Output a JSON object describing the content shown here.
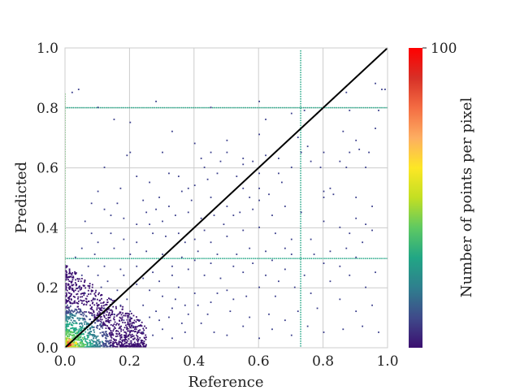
{
  "chart_data": {
    "type": "heatmap",
    "subtype": "density scatter (2D histogram)",
    "xlabel": "Reference",
    "ylabel": "Predicted",
    "xlim": [
      0.0,
      1.0
    ],
    "ylim": [
      0.0,
      1.0
    ],
    "xticks": [
      "0.0",
      "0.2",
      "0.4",
      "0.6",
      "0.8",
      "1.0"
    ],
    "yticks": [
      "0.0",
      "0.2",
      "0.4",
      "0.6",
      "0.8",
      "1.0"
    ],
    "grid": true,
    "reference_line": {
      "from": [
        0.0,
        0.0
      ],
      "to": [
        1.0,
        1.0
      ],
      "color": "#000000"
    },
    "colorbar": {
      "label": "Number of points per pixel",
      "min": 1,
      "max": 100,
      "tick_labels": [
        "100"
      ],
      "colormap": "spectral_r",
      "colors": [
        "#3b0f70",
        "#3f4a8a",
        "#2f7f8e",
        "#21a685",
        "#5ec962",
        "#c2df23",
        "#fde725",
        "#fdae61",
        "#f46d43",
        "#d73027",
        "#ff0000"
      ]
    },
    "density_bands": [
      {
        "type": "horizontal_line",
        "y": 0.8,
        "x_range": [
          0.0,
          1.0
        ],
        "density": 3
      },
      {
        "type": "horizontal_line",
        "y": 0.297,
        "x_range": [
          0.0,
          1.0
        ],
        "density": 3
      },
      {
        "type": "vertical_line",
        "x": 0.73,
        "y_range": [
          0.0,
          1.0
        ],
        "density": 3
      },
      {
        "type": "vertical_line",
        "x": 0.0,
        "y_range": [
          0.0,
          0.85
        ],
        "density": 4
      }
    ],
    "points": [
      [
        0.04,
        0.86
      ],
      [
        0.02,
        0.85
      ],
      [
        0.96,
        0.88
      ],
      [
        0.98,
        0.86
      ],
      [
        0.99,
        0.86
      ],
      [
        0.87,
        0.85
      ],
      [
        0.78,
        0.78
      ],
      [
        0.74,
        0.79
      ],
      [
        0.88,
        0.79
      ],
      [
        0.97,
        0.79
      ],
      [
        0.96,
        0.73
      ],
      [
        0.86,
        0.72
      ],
      [
        0.9,
        0.69
      ],
      [
        0.88,
        0.65
      ],
      [
        0.94,
        0.65
      ],
      [
        0.91,
        0.66
      ],
      [
        0.85,
        0.62
      ],
      [
        0.87,
        0.6
      ],
      [
        0.93,
        0.6
      ],
      [
        0.75,
        0.67
      ],
      [
        0.73,
        0.65
      ],
      [
        0.76,
        0.62
      ],
      [
        0.79,
        0.6
      ],
      [
        0.8,
        0.52
      ],
      [
        0.82,
        0.53
      ],
      [
        0.83,
        0.51
      ],
      [
        0.8,
        0.5
      ],
      [
        0.67,
        0.55
      ],
      [
        0.62,
        0.64
      ],
      [
        0.58,
        0.62
      ],
      [
        0.55,
        0.61
      ],
      [
        0.5,
        0.65
      ],
      [
        0.45,
        0.65
      ],
      [
        0.48,
        0.62
      ],
      [
        0.42,
        0.63
      ],
      [
        0.3,
        0.65
      ],
      [
        0.2,
        0.65
      ],
      [
        0.12,
        0.6
      ],
      [
        0.19,
        0.64
      ],
      [
        0.44,
        0.56
      ],
      [
        0.38,
        0.53
      ],
      [
        0.36,
        0.52
      ],
      [
        0.4,
        0.54
      ],
      [
        0.55,
        0.53
      ],
      [
        0.6,
        0.49
      ],
      [
        0.63,
        0.51
      ],
      [
        0.58,
        0.46
      ],
      [
        0.52,
        0.44
      ],
      [
        0.5,
        0.47
      ],
      [
        0.46,
        0.44
      ],
      [
        0.42,
        0.43
      ],
      [
        0.38,
        0.45
      ],
      [
        0.32,
        0.47
      ],
      [
        0.28,
        0.46
      ],
      [
        0.25,
        0.45
      ],
      [
        0.3,
        0.42
      ],
      [
        0.26,
        0.41
      ],
      [
        0.22,
        0.41
      ],
      [
        0.18,
        0.43
      ],
      [
        0.14,
        0.44
      ],
      [
        0.12,
        0.46
      ],
      [
        0.16,
        0.48
      ],
      [
        0.24,
        0.49
      ],
      [
        0.27,
        0.38
      ],
      [
        0.31,
        0.37
      ],
      [
        0.35,
        0.38
      ],
      [
        0.4,
        0.36
      ],
      [
        0.45,
        0.35
      ],
      [
        0.5,
        0.37
      ],
      [
        0.55,
        0.39
      ],
      [
        0.6,
        0.4
      ],
      [
        0.65,
        0.38
      ],
      [
        0.7,
        0.36
      ],
      [
        0.9,
        0.43
      ],
      [
        0.93,
        0.41
      ],
      [
        0.85,
        0.4
      ],
      [
        0.88,
        0.38
      ],
      [
        0.95,
        0.39
      ],
      [
        0.92,
        0.35
      ],
      [
        0.87,
        0.33
      ],
      [
        0.82,
        0.32
      ],
      [
        0.77,
        0.31
      ],
      [
        0.68,
        0.33
      ],
      [
        0.62,
        0.32
      ],
      [
        0.57,
        0.33
      ],
      [
        0.53,
        0.31
      ],
      [
        0.47,
        0.31
      ],
      [
        0.41,
        0.32
      ],
      [
        0.36,
        0.3
      ],
      [
        0.3,
        0.31
      ],
      [
        0.25,
        0.32
      ],
      [
        0.2,
        0.31
      ],
      [
        0.15,
        0.33
      ],
      [
        0.1,
        0.35
      ],
      [
        0.08,
        0.38
      ],
      [
        0.06,
        0.42
      ],
      [
        0.05,
        0.33
      ],
      [
        0.03,
        0.3
      ],
      [
        0.12,
        0.27
      ],
      [
        0.17,
        0.26
      ],
      [
        0.22,
        0.27
      ],
      [
        0.27,
        0.25
      ],
      [
        0.33,
        0.24
      ],
      [
        0.38,
        0.26
      ],
      [
        0.43,
        0.24
      ],
      [
        0.48,
        0.23
      ],
      [
        0.55,
        0.25
      ],
      [
        0.62,
        0.24
      ],
      [
        0.68,
        0.26
      ],
      [
        0.74,
        0.24
      ],
      [
        0.82,
        0.22
      ],
      [
        0.88,
        0.24
      ],
      [
        0.93,
        0.2
      ],
      [
        0.85,
        0.16
      ],
      [
        0.78,
        0.13
      ],
      [
        0.72,
        0.12
      ],
      [
        0.65,
        0.17
      ],
      [
        0.6,
        0.2
      ],
      [
        0.56,
        0.17
      ],
      [
        0.5,
        0.19
      ],
      [
        0.45,
        0.15
      ],
      [
        0.4,
        0.18
      ],
      [
        0.35,
        0.2
      ],
      [
        0.3,
        0.17
      ],
      [
        0.26,
        0.19
      ],
      [
        0.22,
        0.21
      ],
      [
        0.19,
        0.16
      ],
      [
        0.16,
        0.19
      ],
      [
        0.13,
        0.22
      ],
      [
        0.1,
        0.24
      ],
      [
        0.07,
        0.27
      ],
      [
        0.05,
        0.24
      ],
      [
        0.04,
        0.2
      ],
      [
        0.06,
        0.18
      ],
      [
        0.09,
        0.16
      ],
      [
        0.12,
        0.13
      ],
      [
        0.15,
        0.11
      ],
      [
        0.18,
        0.09
      ],
      [
        0.21,
        0.07
      ],
      [
        0.24,
        0.05
      ],
      [
        0.27,
        0.04
      ],
      [
        0.3,
        0.06
      ],
      [
        0.33,
        0.03
      ],
      [
        0.37,
        0.05
      ],
      [
        0.42,
        0.08
      ],
      [
        0.46,
        0.05
      ],
      [
        0.5,
        0.04
      ],
      [
        0.55,
        0.07
      ],
      [
        0.6,
        0.03
      ],
      [
        0.64,
        0.06
      ],
      [
        0.7,
        0.04
      ],
      [
        0.75,
        0.07
      ],
      [
        0.8,
        0.05
      ],
      [
        0.86,
        0.06
      ],
      [
        0.92,
        0.07
      ],
      [
        0.97,
        0.05
      ],
      [
        0.9,
        0.12
      ],
      [
        0.95,
        0.14
      ],
      [
        0.38,
        0.11
      ],
      [
        0.33,
        0.13
      ],
      [
        0.28,
        0.12
      ],
      [
        0.24,
        0.14
      ],
      [
        0.2,
        0.12
      ],
      [
        0.36,
        0.08
      ],
      [
        0.44,
        0.11
      ],
      [
        0.51,
        0.12
      ],
      [
        0.57,
        0.1
      ],
      [
        0.63,
        0.11
      ],
      [
        0.68,
        0.09
      ],
      [
        0.71,
        0.2
      ],
      [
        0.76,
        0.18
      ],
      [
        0.66,
        0.22
      ],
      [
        0.58,
        0.28
      ],
      [
        0.52,
        0.27
      ],
      [
        0.45,
        0.28
      ],
      [
        0.4,
        0.29
      ],
      [
        0.64,
        0.29
      ],
      [
        0.7,
        0.31
      ],
      [
        0.76,
        0.36
      ],
      [
        0.8,
        0.42
      ],
      [
        0.73,
        0.45
      ],
      [
        0.68,
        0.47
      ],
      [
        0.64,
        0.44
      ],
      [
        0.66,
        0.58
      ],
      [
        0.7,
        0.6
      ],
      [
        0.6,
        0.58
      ],
      [
        0.53,
        0.57
      ],
      [
        0.47,
        0.58
      ],
      [
        0.43,
        0.6
      ],
      [
        0.35,
        0.57
      ],
      [
        0.32,
        0.58
      ],
      [
        0.26,
        0.55
      ],
      [
        0.22,
        0.57
      ],
      [
        0.17,
        0.53
      ],
      [
        0.1,
        0.52
      ],
      [
        0.08,
        0.48
      ],
      [
        0.14,
        0.38
      ],
      [
        0.18,
        0.36
      ],
      [
        0.22,
        0.35
      ],
      [
        0.09,
        0.31
      ],
      [
        0.11,
        0.2
      ],
      [
        0.14,
        0.16
      ],
      [
        0.17,
        0.14
      ],
      [
        0.2,
        0.1
      ],
      [
        0.23,
        0.09
      ],
      [
        0.26,
        0.1
      ],
      [
        0.29,
        0.09
      ],
      [
        0.32,
        0.1
      ],
      [
        0.34,
        0.16
      ],
      [
        0.37,
        0.14
      ],
      [
        0.41,
        0.14
      ],
      [
        0.47,
        0.18
      ],
      [
        0.52,
        0.16
      ],
      [
        0.18,
        0.24
      ],
      [
        0.24,
        0.23
      ],
      [
        0.29,
        0.22
      ],
      [
        0.33,
        0.27
      ],
      [
        0.37,
        0.35
      ],
      [
        0.43,
        0.39
      ],
      [
        0.49,
        0.41
      ],
      [
        0.54,
        0.45
      ],
      [
        0.57,
        0.5
      ],
      [
        0.6,
        0.53
      ],
      [
        0.45,
        0.5
      ],
      [
        0.39,
        0.49
      ],
      [
        0.34,
        0.44
      ],
      [
        0.29,
        0.5
      ],
      [
        0.9,
        0.5
      ],
      [
        0.95,
        0.47
      ],
      [
        0.85,
        0.27
      ],
      [
        0.8,
        0.28
      ],
      [
        0.9,
        0.3
      ],
      [
        0.96,
        0.25
      ],
      [
        0.55,
        0.63
      ],
      [
        0.66,
        0.63
      ],
      [
        0.8,
        0.65
      ],
      [
        0.72,
        0.7
      ],
      [
        0.6,
        0.71
      ],
      [
        0.5,
        0.69
      ],
      [
        0.4,
        0.68
      ],
      [
        0.33,
        0.72
      ],
      [
        0.2,
        0.75
      ],
      [
        0.15,
        0.76
      ],
      [
        0.62,
        0.76
      ],
      [
        0.7,
        0.78
      ],
      [
        0.83,
        0.83
      ],
      [
        0.6,
        0.82
      ],
      [
        0.45,
        0.8
      ],
      [
        0.28,
        0.82
      ],
      [
        0.1,
        0.8
      ]
    ],
    "dense_region": {
      "x_range": [
        0.0,
        0.25
      ],
      "y_range": [
        0.0,
        0.22
      ],
      "peak": [
        0.0,
        0.0
      ]
    }
  }
}
